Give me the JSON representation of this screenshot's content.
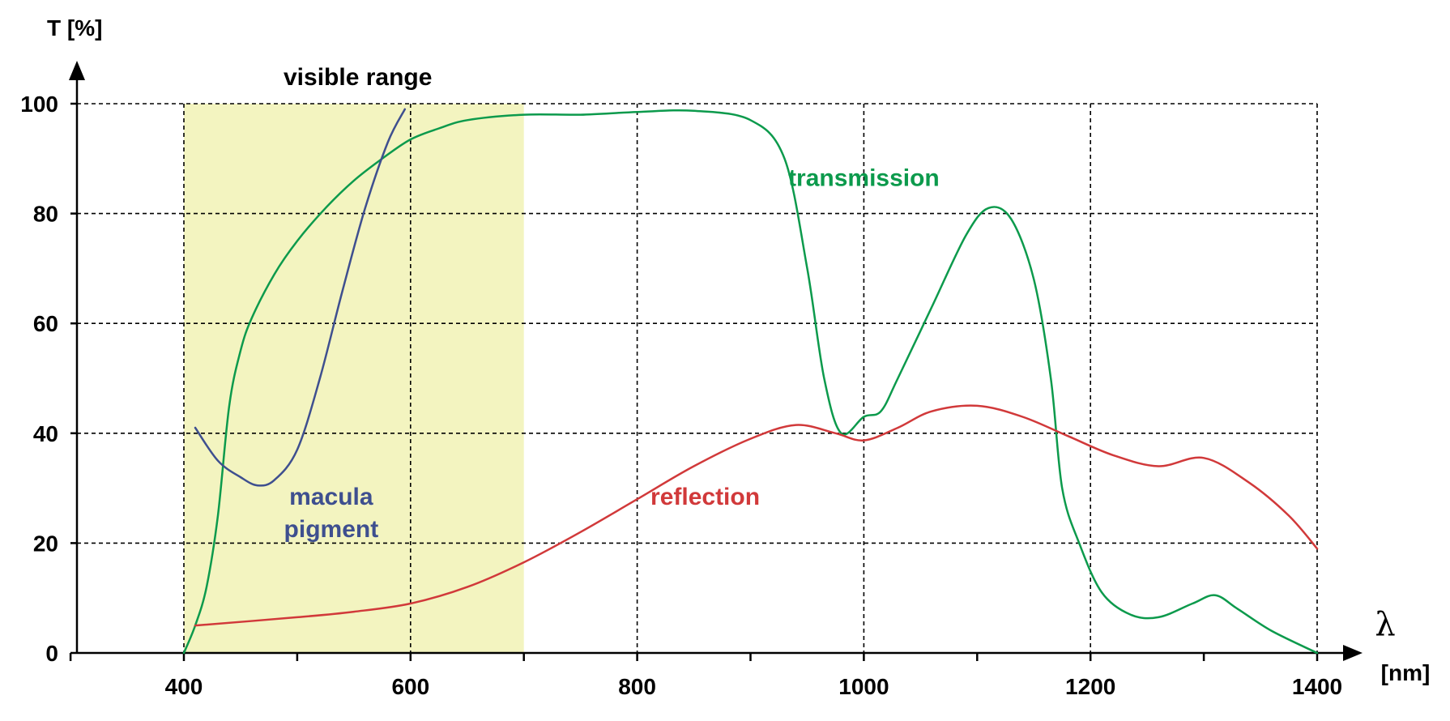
{
  "chart_data": {
    "type": "line",
    "ylabel": "T [%]",
    "xlabel": "λ",
    "xunit": "[nm]",
    "xlim": [
      300,
      1400
    ],
    "ylim": [
      0,
      100
    ],
    "x_ticks": [
      400,
      600,
      800,
      1000,
      1200,
      1400
    ],
    "y_ticks": [
      0,
      20,
      40,
      60,
      80,
      100
    ],
    "grid": true,
    "highlight": {
      "label": "visible range",
      "from": 400,
      "to": 700,
      "color": "#f3f4c0"
    },
    "series": [
      {
        "name": "transmission",
        "color": "#0c9a4c",
        "label_at": [
          1000,
          85
        ],
        "points": [
          [
            400,
            0
          ],
          [
            410,
            5
          ],
          [
            420,
            12
          ],
          [
            430,
            25
          ],
          [
            440,
            45
          ],
          [
            450,
            55
          ],
          [
            460,
            61
          ],
          [
            480,
            69
          ],
          [
            500,
            75
          ],
          [
            525,
            81
          ],
          [
            550,
            86
          ],
          [
            575,
            90
          ],
          [
            600,
            93.5
          ],
          [
            625,
            95.5
          ],
          [
            650,
            97
          ],
          [
            700,
            98
          ],
          [
            750,
            98
          ],
          [
            800,
            98.5
          ],
          [
            850,
            98.7
          ],
          [
            900,
            97
          ],
          [
            930,
            90
          ],
          [
            950,
            70
          ],
          [
            965,
            50
          ],
          [
            980,
            40
          ],
          [
            1000,
            43
          ],
          [
            1015,
            44
          ],
          [
            1030,
            50
          ],
          [
            1060,
            63
          ],
          [
            1090,
            76
          ],
          [
            1110,
            81
          ],
          [
            1130,
            79
          ],
          [
            1150,
            68
          ],
          [
            1165,
            50
          ],
          [
            1175,
            30
          ],
          [
            1190,
            20
          ],
          [
            1210,
            11
          ],
          [
            1235,
            7
          ],
          [
            1260,
            6.5
          ],
          [
            1290,
            9
          ],
          [
            1310,
            10.5
          ],
          [
            1330,
            8
          ],
          [
            1360,
            4
          ],
          [
            1400,
            0
          ]
        ]
      },
      {
        "name": "reflection",
        "color": "#d1393a",
        "label_at": [
          860,
          27
        ],
        "points": [
          [
            410,
            5
          ],
          [
            500,
            6.5
          ],
          [
            550,
            7.5
          ],
          [
            600,
            9
          ],
          [
            650,
            12
          ],
          [
            700,
            16.5
          ],
          [
            750,
            22
          ],
          [
            800,
            28
          ],
          [
            850,
            34
          ],
          [
            900,
            39
          ],
          [
            940,
            41.5
          ],
          [
            975,
            40
          ],
          [
            1000,
            38.7
          ],
          [
            1030,
            41
          ],
          [
            1060,
            44
          ],
          [
            1100,
            45
          ],
          [
            1140,
            43
          ],
          [
            1180,
            39.5
          ],
          [
            1220,
            36
          ],
          [
            1260,
            34
          ],
          [
            1300,
            35.5
          ],
          [
            1340,
            31
          ],
          [
            1375,
            25
          ],
          [
            1400,
            19
          ]
        ]
      },
      {
        "name": "macula pigment",
        "label": [
          "macula",
          "pigment"
        ],
        "color": "#3e4f8f",
        "label_at": [
          530,
          27
        ],
        "points": [
          [
            410,
            41
          ],
          [
            430,
            35
          ],
          [
            450,
            32
          ],
          [
            465,
            30.5
          ],
          [
            480,
            31.5
          ],
          [
            500,
            37
          ],
          [
            520,
            50
          ],
          [
            540,
            66
          ],
          [
            560,
            81
          ],
          [
            580,
            93
          ],
          [
            595,
            99
          ]
        ]
      }
    ]
  }
}
